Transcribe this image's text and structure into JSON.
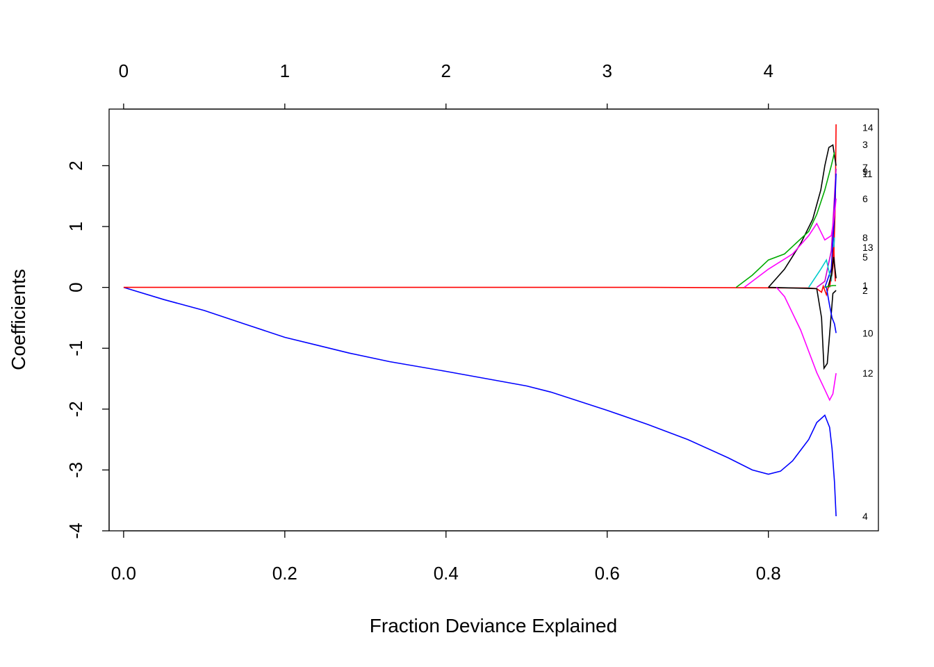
{
  "chart_data": {
    "type": "line",
    "title": "",
    "xlabel": "Fraction Deviance Explained",
    "ylabel": "Coefficients",
    "xlim": [
      -0.018,
      0.9365
    ],
    "ylim": [
      -4.0,
      2.93
    ],
    "x_ticks": [
      "0.0",
      "0.2",
      "0.4",
      "0.6",
      "0.8"
    ],
    "y_ticks": [
      "-4",
      "-3",
      "-2",
      "-1",
      "0",
      "1",
      "2"
    ],
    "top_axis": {
      "ticks": [
        {
          "x": 0.0,
          "label": "0"
        },
        {
          "x": 0.2,
          "label": "1"
        },
        {
          "x": 0.4,
          "label": "2"
        },
        {
          "x": 0.6,
          "label": "3"
        },
        {
          "x": 0.8,
          "label": "4"
        }
      ]
    },
    "grid": false,
    "legend": "none",
    "series": [
      {
        "label": "4",
        "color": "#0000ff",
        "label_y": -3.76,
        "points": [
          [
            0,
            0
          ],
          [
            0.05,
            -0.2
          ],
          [
            0.1,
            -0.38
          ],
          [
            0.15,
            -0.6
          ],
          [
            0.2,
            -0.82
          ],
          [
            0.24,
            -0.95
          ],
          [
            0.28,
            -1.08
          ],
          [
            0.33,
            -1.22
          ],
          [
            0.4,
            -1.38
          ],
          [
            0.45,
            -1.5
          ],
          [
            0.5,
            -1.62
          ],
          [
            0.53,
            -1.72
          ],
          [
            0.6,
            -2.02
          ],
          [
            0.65,
            -2.25
          ],
          [
            0.7,
            -2.5
          ],
          [
            0.75,
            -2.8
          ],
          [
            0.78,
            -3.0
          ],
          [
            0.8,
            -3.07
          ],
          [
            0.815,
            -3.02
          ],
          [
            0.83,
            -2.85
          ],
          [
            0.85,
            -2.5
          ],
          [
            0.86,
            -2.22
          ],
          [
            0.87,
            -2.1
          ],
          [
            0.876,
            -2.3
          ],
          [
            0.879,
            -2.65
          ],
          [
            0.882,
            -3.2
          ],
          [
            0.884,
            -3.76
          ]
        ]
      },
      {
        "label": "14",
        "color": "#ff0000",
        "label_y": 2.63,
        "points": [
          [
            0,
            0
          ],
          [
            0.65,
            0
          ],
          [
            0.85,
            -0.01
          ],
          [
            0.86,
            -0.02
          ],
          [
            0.866,
            -0.08
          ],
          [
            0.868,
            0.02
          ],
          [
            0.872,
            -0.12
          ],
          [
            0.876,
            0.08
          ],
          [
            0.879,
            0.2
          ],
          [
            0.881,
            0.45
          ],
          [
            0.883,
            1.4
          ],
          [
            0.884,
            2.68
          ]
        ]
      },
      {
        "label": "3",
        "color": "#000000",
        "label_y": 2.35,
        "points": [
          [
            0.8,
            0
          ],
          [
            0.82,
            0.3
          ],
          [
            0.84,
            0.72
          ],
          [
            0.855,
            1.12
          ],
          [
            0.865,
            1.6
          ],
          [
            0.87,
            2.0
          ],
          [
            0.875,
            2.3
          ],
          [
            0.88,
            2.34
          ],
          [
            0.884,
            2.0
          ]
        ]
      },
      {
        "label": "7",
        "color": "#00aa00",
        "label_y": 1.97,
        "points": [
          [
            0.76,
            0
          ],
          [
            0.78,
            0.2
          ],
          [
            0.8,
            0.45
          ],
          [
            0.82,
            0.55
          ],
          [
            0.85,
            0.92
          ],
          [
            0.86,
            1.2
          ],
          [
            0.87,
            1.6
          ],
          [
            0.878,
            2.0
          ],
          [
            0.882,
            2.22
          ]
        ]
      },
      {
        "label": "9",
        "color": "#cc00cc",
        "label_y": 1.9,
        "points": [
          [
            0.86,
            0
          ],
          [
            0.87,
            0.1
          ],
          [
            0.878,
            0.6
          ],
          [
            0.882,
            1.5
          ],
          [
            0.884,
            1.95
          ]
        ]
      },
      {
        "label": "11",
        "color": "#0000ff",
        "label_y": 1.87,
        "points": [
          [
            0.87,
            0
          ],
          [
            0.878,
            0.3
          ],
          [
            0.882,
            1.2
          ],
          [
            0.884,
            1.87
          ]
        ]
      },
      {
        "label": "6",
        "color": "#ff00ff",
        "label_y": 1.46,
        "points": [
          [
            0.77,
            0
          ],
          [
            0.8,
            0.3
          ],
          [
            0.83,
            0.55
          ],
          [
            0.85,
            0.85
          ],
          [
            0.86,
            1.05
          ],
          [
            0.87,
            0.78
          ],
          [
            0.878,
            0.85
          ],
          [
            0.882,
            1.2
          ],
          [
            0.884,
            1.46
          ]
        ]
      },
      {
        "label": "8",
        "color": "#00cccc",
        "label_y": 0.82,
        "points": [
          [
            0.85,
            0
          ],
          [
            0.865,
            0.3
          ],
          [
            0.872,
            0.45
          ],
          [
            0.878,
            0.1
          ],
          [
            0.882,
            0.82
          ]
        ]
      },
      {
        "label": "13",
        "color": "#ff0000",
        "label_y": 0.66,
        "points": [
          [
            0.876,
            0
          ],
          [
            0.879,
            0.3
          ],
          [
            0.881,
            0.66
          ],
          [
            0.883,
            0.1
          ]
        ]
      },
      {
        "label": "5",
        "color": "#000000",
        "label_y": 0.5,
        "points": [
          [
            0.874,
            0
          ],
          [
            0.878,
            0.2
          ],
          [
            0.881,
            0.5
          ],
          [
            0.884,
            0.15
          ]
        ]
      },
      {
        "label": "1",
        "color": "#00aa00",
        "label_y": 0.03,
        "points": [
          [
            0.87,
            0
          ],
          [
            0.875,
            0.02
          ],
          [
            0.88,
            0.03
          ],
          [
            0.884,
            0.03
          ]
        ]
      },
      {
        "label": "2",
        "color": "#000000",
        "label_y": -0.05,
        "points": [
          [
            0.8,
            0
          ],
          [
            0.86,
            -0.02
          ],
          [
            0.866,
            -0.5
          ],
          [
            0.869,
            -1.33
          ],
          [
            0.873,
            -1.25
          ],
          [
            0.877,
            -0.6
          ],
          [
            0.88,
            -0.1
          ],
          [
            0.884,
            -0.05
          ]
        ]
      },
      {
        "label": "10",
        "color": "#0000ff",
        "label_y": -0.75,
        "points": [
          [
            0.872,
            0
          ],
          [
            0.876,
            -0.3
          ],
          [
            0.879,
            -0.5
          ],
          [
            0.882,
            -0.6
          ],
          [
            0.884,
            -0.75
          ]
        ]
      },
      {
        "label": "12",
        "color": "#ff00ff",
        "label_y": -1.41,
        "points": [
          [
            0.81,
            0
          ],
          [
            0.82,
            -0.15
          ],
          [
            0.84,
            -0.7
          ],
          [
            0.86,
            -1.4
          ],
          [
            0.87,
            -1.68
          ],
          [
            0.876,
            -1.85
          ],
          [
            0.88,
            -1.75
          ],
          [
            0.884,
            -1.41
          ]
        ]
      }
    ]
  }
}
